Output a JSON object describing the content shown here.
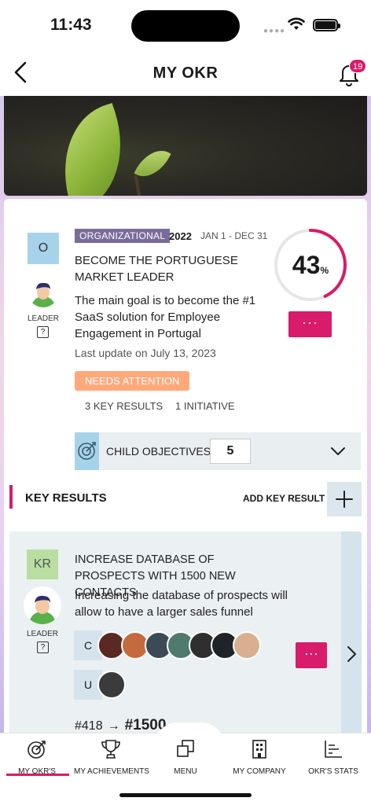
{
  "status": {
    "time": "11:43"
  },
  "header": {
    "title": "MY OKR",
    "notifications": "19"
  },
  "objective": {
    "avatar_letter": "O",
    "leader_label": "LEADER",
    "help": "?",
    "tag": "ORGANIZATIONAL",
    "year": "2022",
    "range": "JAN 1 - DEC 31",
    "title_line1": "BECOME THE PORTUGUESE",
    "title_line2": "MARKET LEADER",
    "description": "The main goal is to become the #1 SaaS solution for Employee Engagement in Portugal",
    "last_update": "Last update on July 13, 2023",
    "status": "NEEDS ATTENTION",
    "key_results_count": "3 KEY RESULTS",
    "initiative_count": "1 INITIATIVE",
    "progress_value": "43",
    "progress_unit": "%",
    "progress_fraction": 0.43,
    "more": "···",
    "child_label": "CHILD OBJECTIVES",
    "child_count": "5"
  },
  "key_results": {
    "heading": "KEY RESULTS",
    "add_label": "ADD KEY RESULT",
    "add_symbol": "+",
    "item": {
      "badge": "KR",
      "leader_label": "LEADER",
      "help": "?",
      "title": "INCREASE DATABASE OF PROSPECTS WITH 1500 NEW CONTACTS",
      "description": "Increasing the database of prospects will allow to have a larger sales funnel",
      "group_c": "C",
      "group_u": "U",
      "more": "···",
      "start_value": "#418",
      "arrow": "→",
      "target_value": "#1500"
    }
  },
  "tabs": [
    {
      "label": "MY OKR'S",
      "icon": "target-icon"
    },
    {
      "label": "MY ACHIEVEMENTS",
      "icon": "trophy-icon"
    },
    {
      "label": "MENU",
      "icon": "menu-squares-icon"
    },
    {
      "label": "MY COMPANY",
      "icon": "building-icon"
    },
    {
      "label": "OKR'S STATS",
      "icon": "stats-icon"
    }
  ],
  "colors": {
    "accent": "#d81b6a",
    "tag": "#7a6c9a",
    "attention": "#ffa97a",
    "light_blue": "#a7d3ea"
  }
}
